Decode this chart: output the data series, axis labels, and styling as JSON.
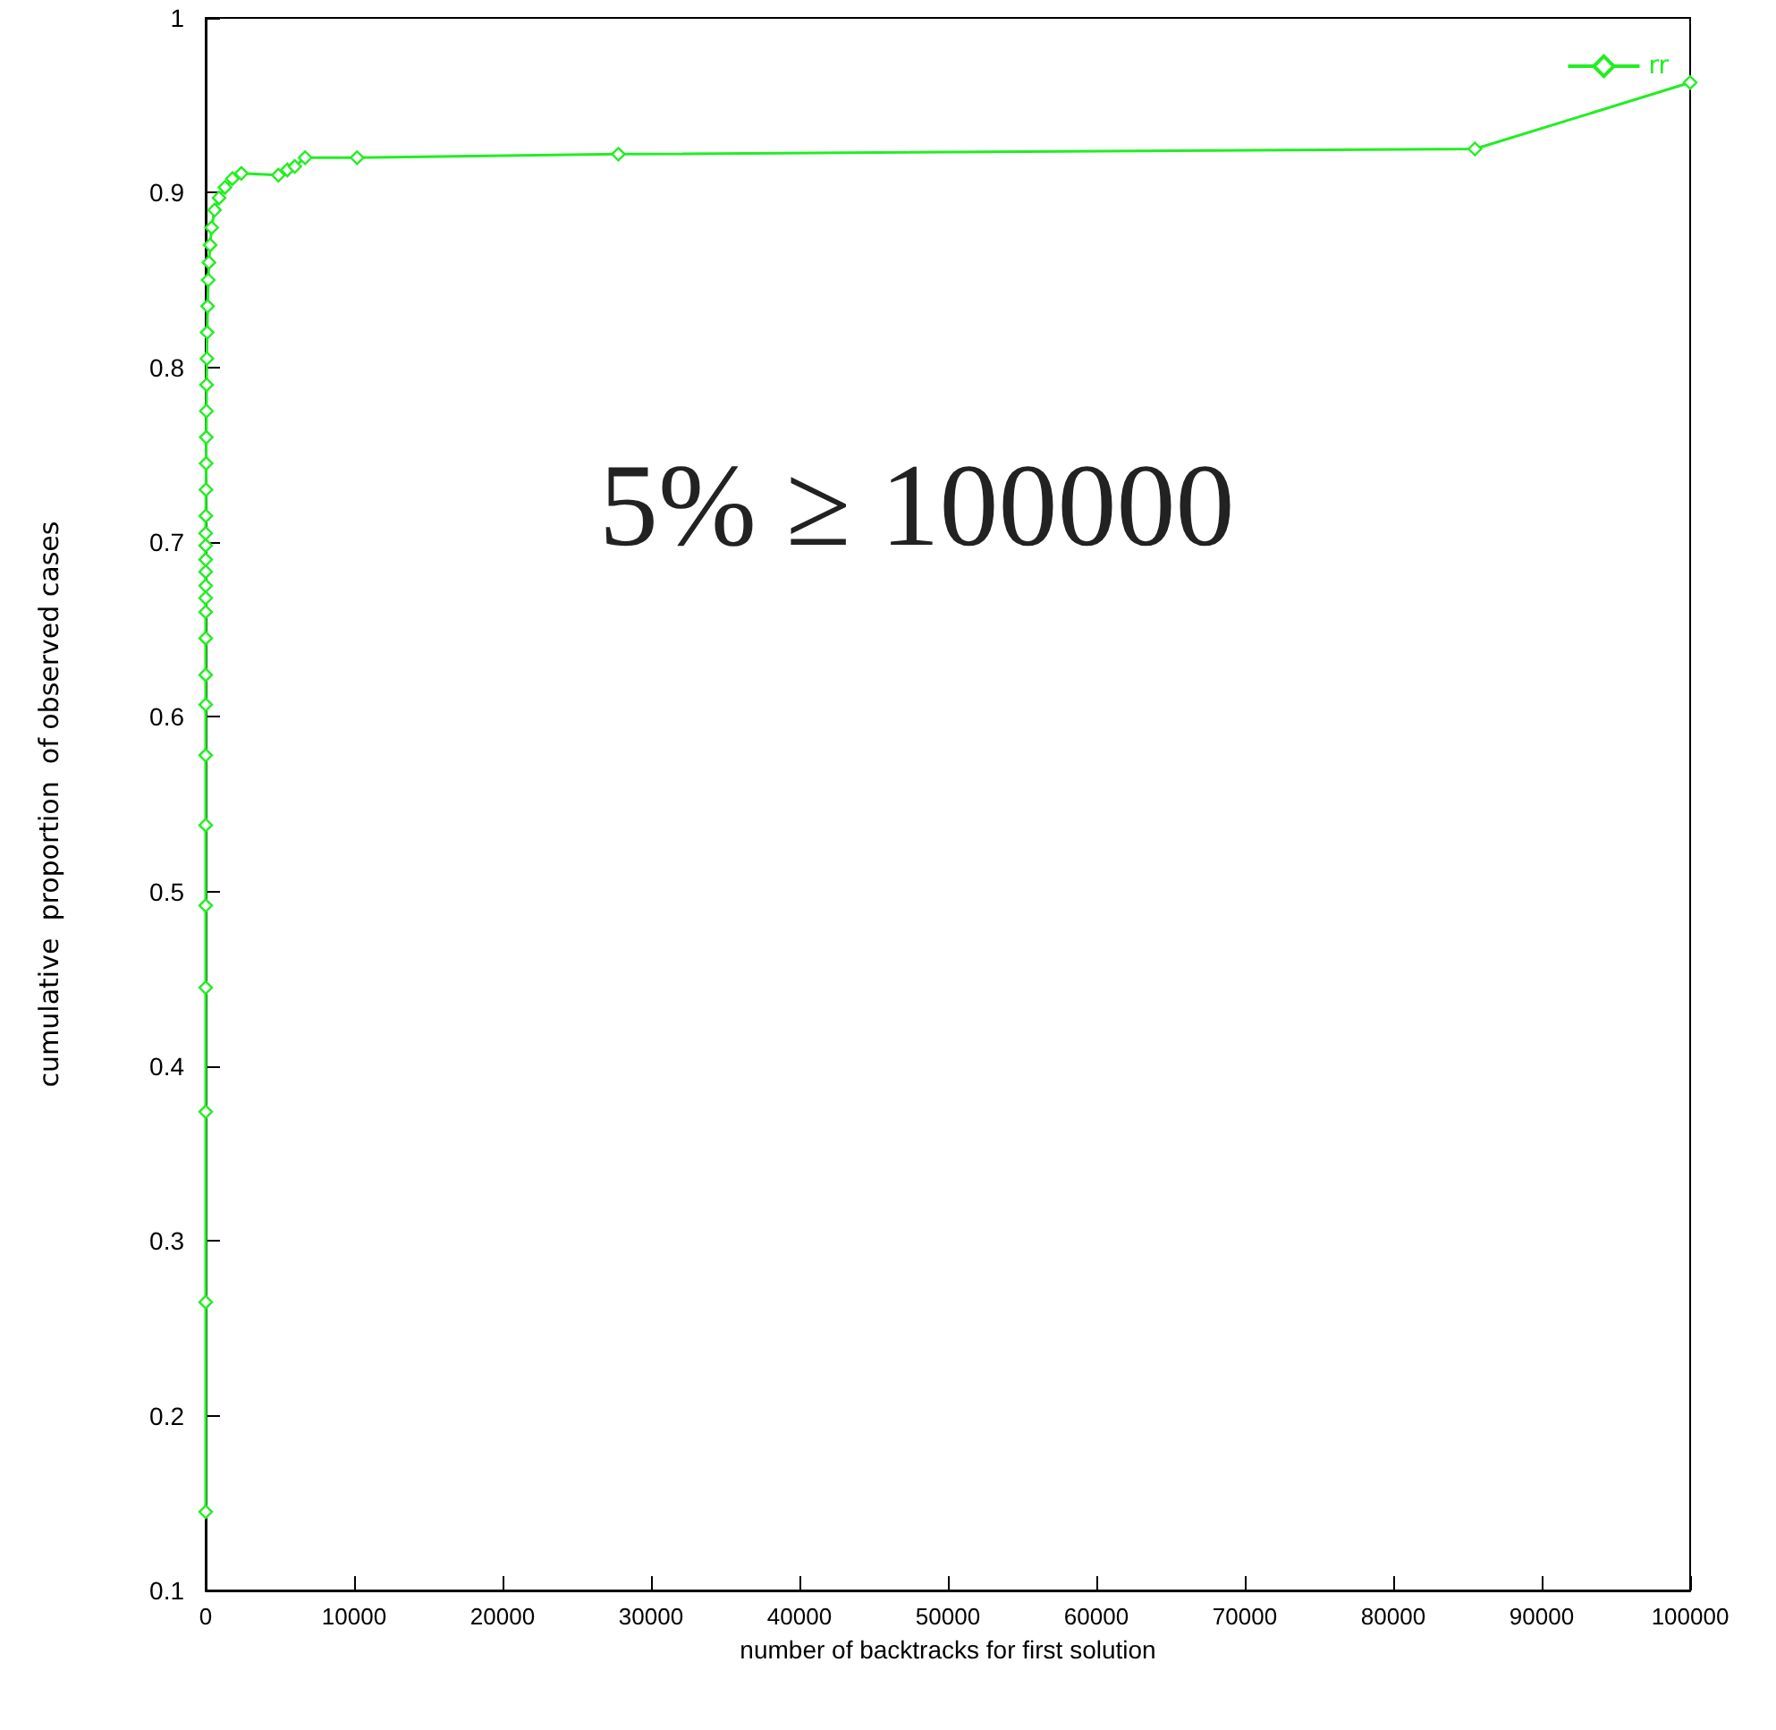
{
  "chart_data": {
    "type": "line",
    "xlabel": "number of backtracks for first solution",
    "ylabel": "cumulative  proportion  of observed cases",
    "annotations": [
      "5% ≥ 100000"
    ],
    "xlim": [
      0,
      100000
    ],
    "xticks": [
      0,
      10000,
      20000,
      30000,
      40000,
      50000,
      60000,
      70000,
      80000,
      90000,
      100000
    ],
    "ylim": [
      0.1,
      1
    ],
    "yticks": [
      0.1,
      0.2,
      0.3,
      0.4,
      0.5,
      0.6,
      0.7,
      0.8,
      0.9,
      1
    ],
    "grid": false,
    "legend": "top right",
    "marker": "diamond",
    "line_style": "solid",
    "series": [
      {
        "name": "rr",
        "color": "#22ee22",
        "x": [
          0,
          0,
          0,
          0,
          0,
          0,
          0,
          0,
          0,
          0,
          0,
          0,
          0,
          0,
          0,
          0,
          0,
          10,
          20,
          30,
          40,
          50,
          60,
          80,
          100,
          130,
          170,
          220,
          300,
          400,
          600,
          900,
          1300,
          1800,
          2400,
          4900,
          5500,
          6000,
          6700,
          10200,
          27800,
          85500,
          100000
        ],
        "values": [
          0.145,
          0.265,
          0.374,
          0.445,
          0.492,
          0.538,
          0.578,
          0.607,
          0.624,
          0.645,
          0.66,
          0.668,
          0.675,
          0.683,
          0.69,
          0.698,
          0.705,
          0.715,
          0.73,
          0.745,
          0.76,
          0.775,
          0.79,
          0.805,
          0.82,
          0.835,
          0.85,
          0.86,
          0.87,
          0.88,
          0.89,
          0.897,
          0.903,
          0.908,
          0.911,
          0.91,
          0.913,
          0.915,
          0.92,
          0.92,
          0.922,
          0.925,
          0.963
        ]
      }
    ]
  }
}
